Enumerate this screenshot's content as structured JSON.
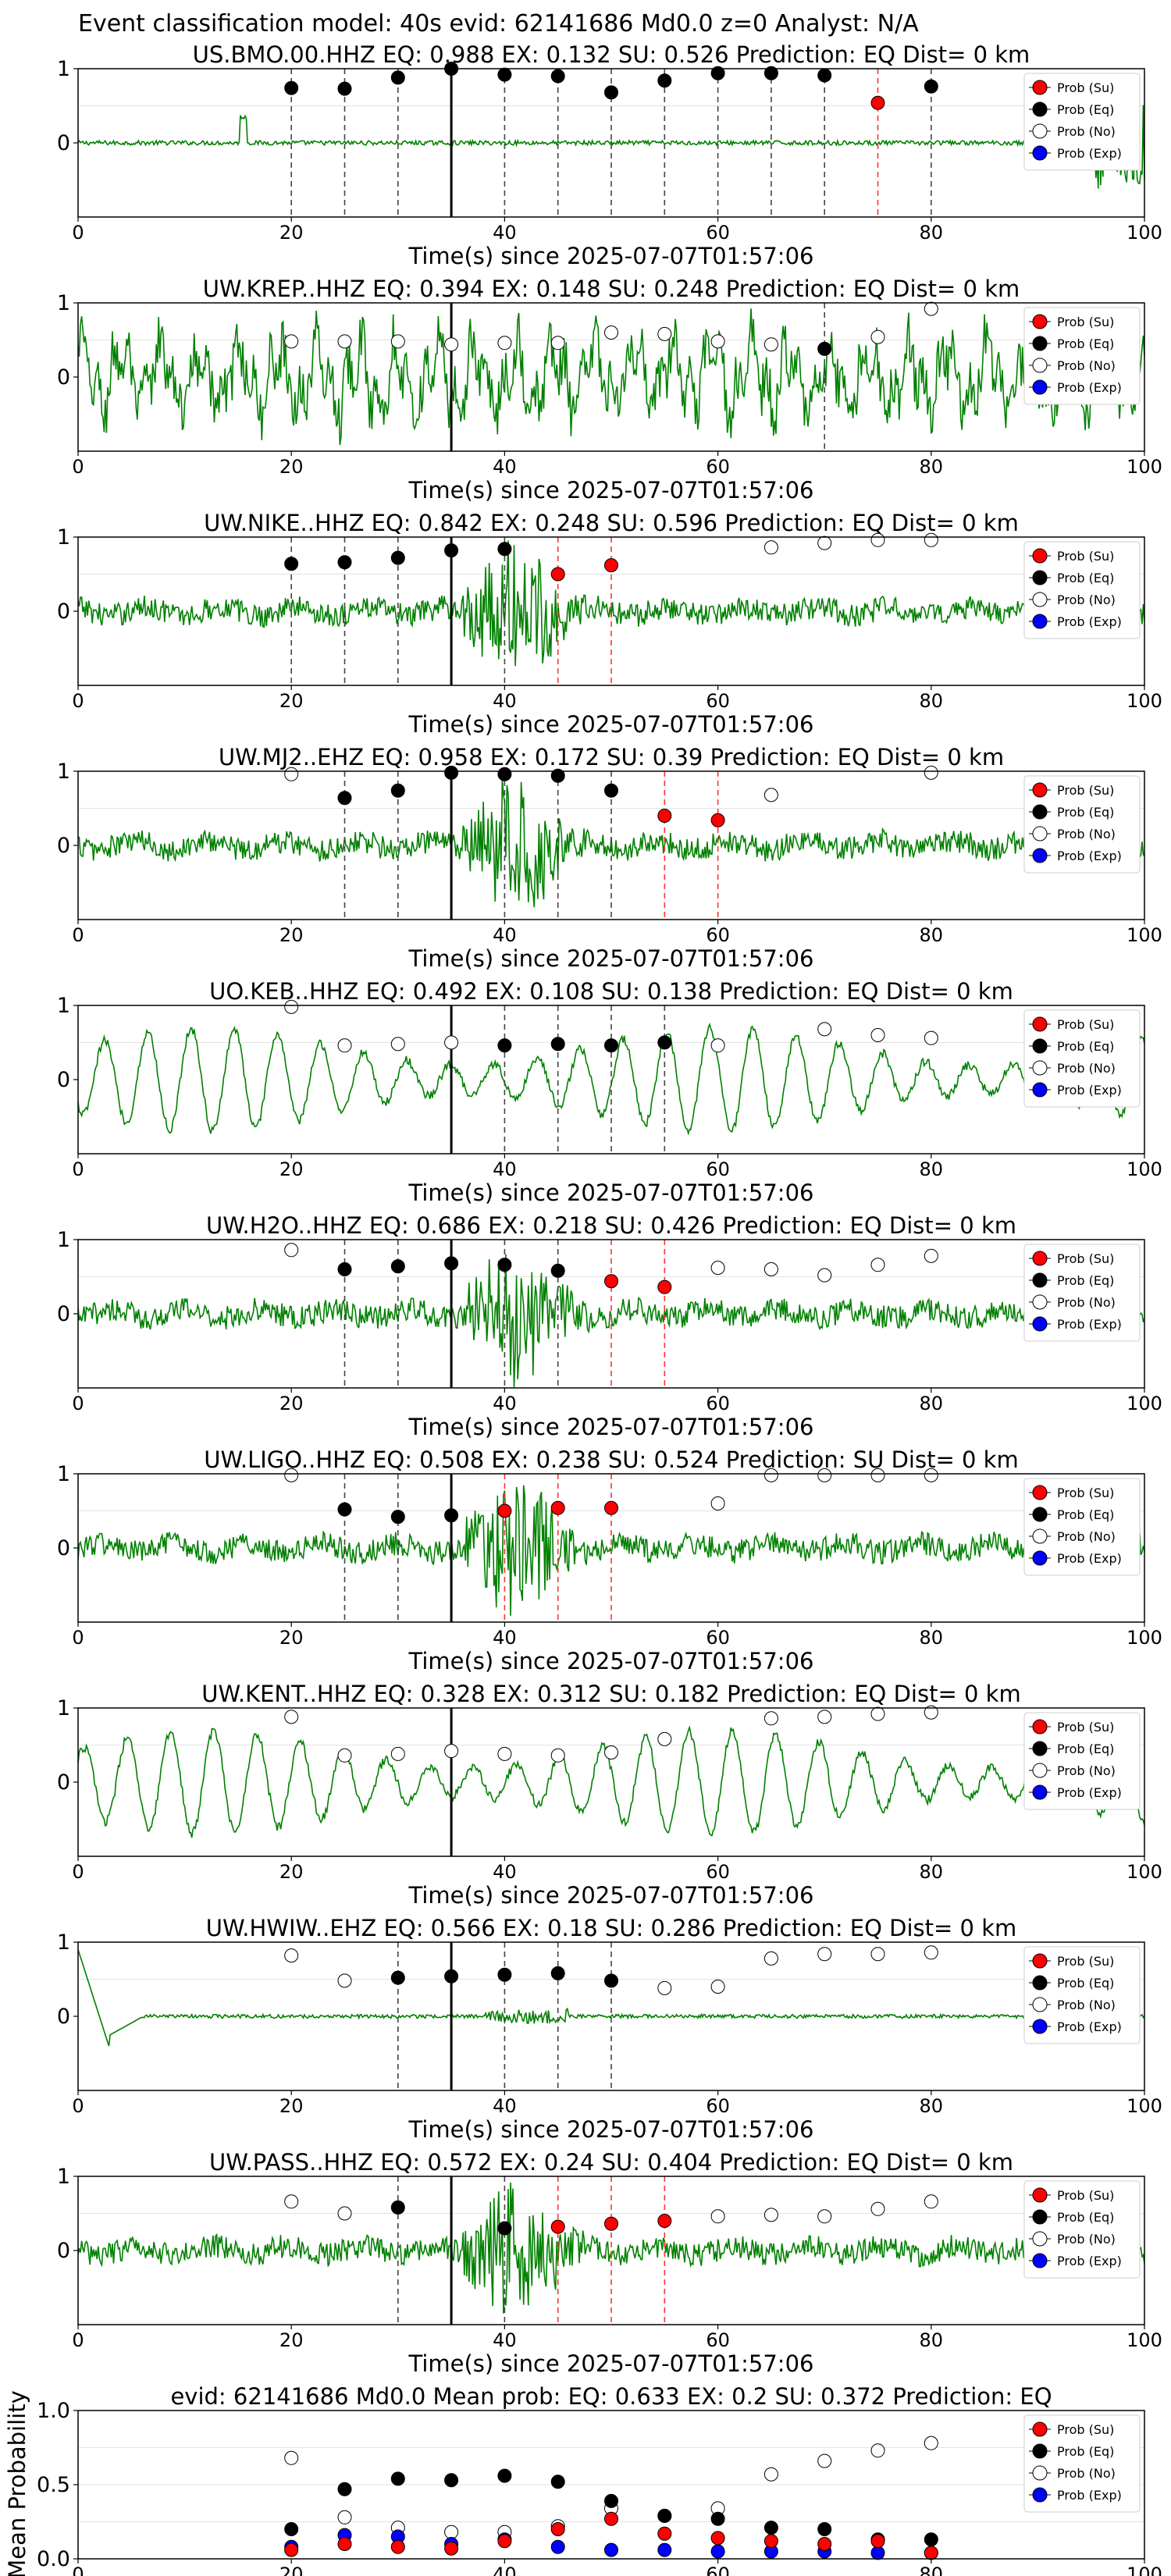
{
  "figure": {
    "title": "Event classification model: 40s evid: 62141686 Md0.0 z=0 Analyst: N/A"
  },
  "colors": {
    "wave": "#008000",
    "su": "#ff0000",
    "eq": "#000000",
    "no": "#ffffff",
    "exp": "#0000ff",
    "eqline": "#444444",
    "suline": "#ff3333"
  },
  "legend_labels": [
    "Prob (Su)",
    "Prob (Eq)",
    "Prob (No)",
    "Prob (Exp)"
  ],
  "xlabel": "Time(s) since 2025-07-07T01:57:06",
  "xticks": [
    "0",
    "20",
    "40",
    "60",
    "80",
    "100"
  ],
  "station_yticks": [
    "1",
    "0"
  ],
  "mean_yticks": [
    "1.0",
    "0.5",
    "0.0"
  ],
  "mean_ylabel": "Mean Probability",
  "chart_data": [
    {
      "type": "scatter",
      "title": "US.BMO.00.HHZ   EQ: 0.988  EX: 0.132  SU: 0.526   Prediction: EQ    Dist= 0 km",
      "xlim": [
        0,
        100
      ],
      "ylim": [
        -1,
        1
      ],
      "arrival": 35,
      "wave": "spike",
      "eq_x": [
        20,
        25,
        30,
        35,
        40,
        45,
        50,
        55,
        60,
        65,
        70,
        80
      ],
      "eq_y": [
        0.74,
        0.73,
        0.88,
        1.0,
        0.92,
        0.9,
        0.68,
        0.84,
        0.94,
        0.94,
        0.91,
        0.76
      ],
      "su_x": [
        75
      ],
      "su_y": [
        0.54
      ],
      "no_x": [],
      "no_y": []
    },
    {
      "type": "scatter",
      "title": "UW.KREP..HHZ   EQ: 0.394  EX: 0.148  SU: 0.248   Prediction: EQ    Dist= 0 km",
      "xlim": [
        0,
        100
      ],
      "ylim": [
        -1,
        1
      ],
      "arrival": 35,
      "wave": "noisy",
      "eq_x": [
        70
      ],
      "eq_y": [
        0.38
      ],
      "su_x": [],
      "su_y": [],
      "no_x": [
        20,
        25,
        30,
        35,
        40,
        45,
        50,
        55,
        60,
        65,
        75,
        80
      ],
      "no_y": [
        0.48,
        0.48,
        0.48,
        0.44,
        0.46,
        0.46,
        0.6,
        0.58,
        0.48,
        0.44,
        0.54,
        0.92
      ]
    },
    {
      "type": "scatter",
      "title": "UW.NIKE..HHZ   EQ: 0.842  EX: 0.248  SU: 0.596   Prediction: EQ    Dist= 0 km",
      "xlim": [
        0,
        100
      ],
      "ylim": [
        -1,
        1
      ],
      "arrival": 35,
      "wave": "burst",
      "eq_x": [
        20,
        25,
        30,
        35,
        40
      ],
      "eq_y": [
        0.64,
        0.66,
        0.72,
        0.82,
        0.84
      ],
      "su_x": [
        45,
        50
      ],
      "su_y": [
        0.5,
        0.62
      ],
      "no_x": [
        65,
        70,
        75,
        80
      ],
      "no_y": [
        0.86,
        0.92,
        0.96,
        0.96
      ]
    },
    {
      "type": "scatter",
      "title": "UW.MJ2..EHZ   EQ: 0.958  EX: 0.172  SU: 0.39   Prediction: EQ    Dist= 0 km",
      "xlim": [
        0,
        100
      ],
      "ylim": [
        -1,
        1
      ],
      "arrival": 35,
      "wave": "burst",
      "eq_x": [
        25,
        30,
        35,
        40,
        45,
        50
      ],
      "eq_y": [
        0.64,
        0.74,
        0.98,
        0.96,
        0.94,
        0.74
      ],
      "su_x": [
        55,
        60
      ],
      "su_y": [
        0.4,
        0.34
      ],
      "no_x": [
        20,
        65,
        80
      ],
      "no_y": [
        0.96,
        0.68,
        0.98
      ]
    },
    {
      "type": "scatter",
      "title": "UO.KEB..HHZ   EQ: 0.492  EX: 0.108  SU: 0.138   Prediction: EQ    Dist= 0 km",
      "xlim": [
        0,
        100
      ],
      "ylim": [
        -1,
        1
      ],
      "arrival": 35,
      "wave": "sine",
      "eq_x": [
        40,
        45,
        50,
        55
      ],
      "eq_y": [
        0.46,
        0.48,
        0.46,
        0.5
      ],
      "su_x": [],
      "su_y": [],
      "no_x": [
        20,
        25,
        30,
        35,
        60,
        70,
        75,
        80
      ],
      "no_y": [
        0.98,
        0.46,
        0.48,
        0.5,
        0.46,
        0.68,
        0.6,
        0.56
      ]
    },
    {
      "type": "scatter",
      "title": "UW.H2O..HHZ   EQ: 0.686  EX: 0.218  SU: 0.426   Prediction: EQ    Dist= 0 km",
      "xlim": [
        0,
        100
      ],
      "ylim": [
        -1,
        1
      ],
      "arrival": 35,
      "wave": "burst",
      "eq_x": [
        25,
        30,
        35,
        40,
        45
      ],
      "eq_y": [
        0.6,
        0.64,
        0.68,
        0.66,
        0.58
      ],
      "su_x": [
        50,
        55
      ],
      "su_y": [
        0.44,
        0.36
      ],
      "no_x": [
        20,
        60,
        65,
        70,
        75,
        80
      ],
      "no_y": [
        0.86,
        0.62,
        0.6,
        0.52,
        0.66,
        0.78
      ]
    },
    {
      "type": "scatter",
      "title": "UW.LIGO..HHZ   EQ: 0.508  EX: 0.238  SU: 0.524   Prediction: SU    Dist= 0 km",
      "xlim": [
        0,
        100
      ],
      "ylim": [
        -1,
        1
      ],
      "arrival": 35,
      "wave": "burst",
      "eq_x": [
        25,
        30,
        35
      ],
      "eq_y": [
        0.52,
        0.42,
        0.44
      ],
      "su_x": [
        40,
        45,
        50
      ],
      "su_y": [
        0.5,
        0.54,
        0.54
      ],
      "no_x": [
        20,
        60,
        65,
        70,
        75,
        80
      ],
      "no_y": [
        0.98,
        0.6,
        0.98,
        0.98,
        0.98,
        0.98
      ]
    },
    {
      "type": "scatter",
      "title": "UW.KENT..HHZ   EQ: 0.328  EX: 0.312  SU: 0.182   Prediction: EQ    Dist= 0 km",
      "xlim": [
        0,
        100
      ],
      "ylim": [
        -1,
        1
      ],
      "arrival": 35,
      "wave": "sine",
      "eq_x": [],
      "eq_y": [],
      "su_x": [],
      "su_y": [],
      "no_x": [
        20,
        25,
        30,
        35,
        40,
        45,
        50,
        55,
        65,
        70,
        75,
        80
      ],
      "no_y": [
        0.88,
        0.36,
        0.38,
        0.42,
        0.38,
        0.36,
        0.4,
        0.58,
        0.86,
        0.88,
        0.92,
        0.94
      ]
    },
    {
      "type": "scatter",
      "title": "UW.HWIW..EHZ   EQ: 0.566  EX: 0.18  SU: 0.286   Prediction: EQ    Dist= 0 km",
      "xlim": [
        0,
        100
      ],
      "ylim": [
        -1,
        1
      ],
      "arrival": 35,
      "wave": "flat",
      "eq_x": [
        30,
        35,
        40,
        45,
        50
      ],
      "eq_y": [
        0.52,
        0.54,
        0.56,
        0.58,
        0.48
      ],
      "su_x": [],
      "su_y": [],
      "no_x": [
        20,
        25,
        55,
        60,
        65,
        70,
        75,
        80
      ],
      "no_y": [
        0.82,
        0.48,
        0.38,
        0.4,
        0.78,
        0.84,
        0.84,
        0.86
      ]
    },
    {
      "type": "scatter",
      "title": "UW.PASS..HHZ   EQ: 0.572  EX: 0.24  SU: 0.404   Prediction: EQ    Dist= 0 km",
      "xlim": [
        0,
        100
      ],
      "ylim": [
        -1,
        1
      ],
      "arrival": 35,
      "wave": "burst",
      "eq_x": [
        30,
        40
      ],
      "eq_y": [
        0.58,
        0.3
      ],
      "su_x": [
        45,
        50,
        55
      ],
      "su_y": [
        0.32,
        0.36,
        0.4
      ],
      "no_x": [
        20,
        25,
        60,
        65,
        70,
        75,
        80
      ],
      "no_y": [
        0.66,
        0.5,
        0.46,
        0.48,
        0.46,
        0.56,
        0.66
      ]
    },
    {
      "type": "scatter",
      "title": "evid: 62141686   Md0.0   Mean prob:   EQ: 0.633   EX: 0.2   SU: 0.372   Prediction: EQ",
      "xlim": [
        0,
        100
      ],
      "ylim": [
        0,
        1
      ],
      "eq_x": [
        20,
        25,
        30,
        35,
        40,
        45,
        50,
        55,
        60,
        65,
        70,
        75,
        80
      ],
      "eq_y": [
        0.2,
        0.47,
        0.54,
        0.53,
        0.56,
        0.52,
        0.39,
        0.29,
        0.27,
        0.21,
        0.2,
        0.13,
        0.13
      ],
      "su_x": [
        20,
        25,
        30,
        35,
        40,
        45,
        50,
        55,
        60,
        65,
        70,
        75,
        80
      ],
      "su_y": [
        0.06,
        0.1,
        0.08,
        0.07,
        0.12,
        0.2,
        0.27,
        0.17,
        0.14,
        0.12,
        0.1,
        0.12,
        0.04
      ],
      "no_x": [
        20,
        25,
        30,
        35,
        40,
        45,
        50,
        55,
        60,
        65,
        70,
        75,
        80
      ],
      "no_y": [
        0.68,
        0.28,
        0.21,
        0.18,
        0.18,
        0.22,
        0.34,
        0.29,
        0.34,
        0.57,
        0.66,
        0.73,
        0.78
      ],
      "exp_x": [
        20,
        25,
        30,
        35,
        40,
        45,
        50,
        55,
        60,
        65,
        70,
        75,
        80
      ],
      "exp_y": [
        0.08,
        0.16,
        0.15,
        0.1,
        0.13,
        0.08,
        0.06,
        0.06,
        0.05,
        0.05,
        0.05,
        0.04,
        0.04
      ]
    }
  ]
}
